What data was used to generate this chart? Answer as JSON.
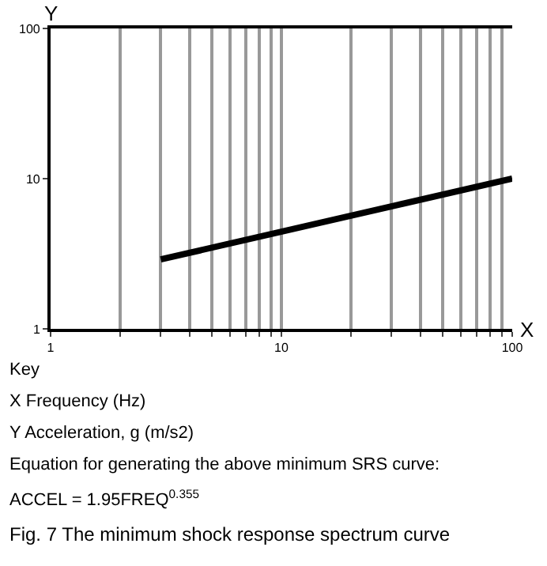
{
  "chart_data": {
    "type": "line",
    "title": "Fig. 7 The minimum shock response spectrum curve",
    "xlabel": "X",
    "ylabel": "Y",
    "x": [
      3,
      100
    ],
    "series": [
      {
        "color": "#000000",
        "values": [
          2.9,
          10
        ]
      }
    ],
    "log": "xy",
    "xlim": [
      1,
      100
    ],
    "ylim": [
      1,
      100
    ],
    "xticks": [
      1,
      {
        "value": 2,
        "label": null
      },
      {
        "value": 3,
        "label": null
      },
      {
        "value": 4,
        "label": null
      },
      {
        "value": 5,
        "label": null
      },
      {
        "value": 6,
        "label": null
      },
      {
        "value": 7,
        "label": null
      },
      {
        "value": 8,
        "label": null
      },
      {
        "value": 9,
        "label": null
      },
      10,
      {
        "value": 20,
        "label": null
      },
      {
        "value": 30,
        "label": null
      },
      {
        "value": 40,
        "label": null
      },
      {
        "value": 50,
        "label": null
      },
      {
        "value": 60,
        "label": null
      },
      {
        "value": 70,
        "label": null
      },
      {
        "value": 80,
        "label": null
      },
      {
        "value": 90,
        "label": null
      },
      100
    ],
    "yticks": [
      1,
      10,
      100
    ],
    "grid": "x",
    "marker": "none",
    "line_style": "solid",
    "annotations": [
      "Key",
      "X Frequency (Hz)",
      "Y Acceleration, g (m/s2)",
      "Equation for generating the above minimum SRS curve:",
      "ACCEL = 1.95FREQ$^{0.355}$"
    ]
  }
}
